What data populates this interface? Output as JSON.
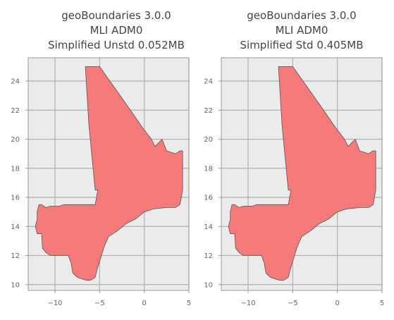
{
  "colors": {
    "background": "#ebebeb",
    "grid": "#b0b0b0",
    "frame": "#999999",
    "fill": "#f87474",
    "edge": "#555555"
  },
  "chart_data": [
    {
      "type": "map",
      "title_lines": [
        "geoBoundaries 3.0.0",
        "MLI ADM0",
        "Simplified Unstd 0.052MB"
      ],
      "xlabel": "",
      "ylabel": "",
      "xlim": [
        -13.0,
        5.0
      ],
      "ylim": [
        9.6,
        25.6
      ],
      "xticks": [
        -10,
        -5,
        0,
        5
      ],
      "yticks": [
        10,
        12,
        14,
        16,
        18,
        20,
        22,
        24
      ],
      "grid": true,
      "shape": [
        [
          -6.6,
          25.0
        ],
        [
          -5.0,
          25.0
        ],
        [
          -2.0,
          22.4
        ],
        [
          -0.2,
          20.8
        ],
        [
          0.8,
          20.0
        ],
        [
          1.2,
          19.5
        ],
        [
          2.0,
          20.0
        ],
        [
          2.5,
          19.2
        ],
        [
          3.5,
          19.0
        ],
        [
          4.0,
          19.2
        ],
        [
          4.3,
          19.2
        ],
        [
          4.3,
          16.5
        ],
        [
          4.0,
          15.5
        ],
        [
          3.5,
          15.3
        ],
        [
          2.5,
          15.3
        ],
        [
          1.0,
          15.2
        ],
        [
          0.0,
          15.0
        ],
        [
          -1.0,
          14.5
        ],
        [
          -2.0,
          14.2
        ],
        [
          -3.0,
          13.7
        ],
        [
          -4.0,
          13.3
        ],
        [
          -4.5,
          12.6
        ],
        [
          -5.0,
          11.6
        ],
        [
          -5.2,
          11.2
        ],
        [
          -5.5,
          10.5
        ],
        [
          -6.0,
          10.3
        ],
        [
          -6.5,
          10.3
        ],
        [
          -7.0,
          10.4
        ],
        [
          -7.5,
          10.5
        ],
        [
          -8.0,
          10.8
        ],
        [
          -8.2,
          11.5
        ],
        [
          -8.5,
          12.0
        ],
        [
          -9.0,
          12.0
        ],
        [
          -10.0,
          12.0
        ],
        [
          -10.5,
          12.0
        ],
        [
          -11.0,
          12.2
        ],
        [
          -11.4,
          12.5
        ],
        [
          -11.5,
          13.5
        ],
        [
          -12.0,
          13.5
        ],
        [
          -12.2,
          14.0
        ],
        [
          -12.0,
          14.5
        ],
        [
          -12.0,
          15.0
        ],
        [
          -11.8,
          15.5
        ],
        [
          -11.5,
          15.5
        ],
        [
          -11.0,
          15.3
        ],
        [
          -10.5,
          15.4
        ],
        [
          -9.5,
          15.4
        ],
        [
          -9.0,
          15.5
        ],
        [
          -7.5,
          15.5
        ],
        [
          -5.5,
          15.5
        ],
        [
          -5.2,
          16.5
        ],
        [
          -5.5,
          16.5
        ],
        [
          -6.2,
          21.0
        ],
        [
          -6.6,
          25.0
        ]
      ]
    },
    {
      "type": "map",
      "title_lines": [
        "geoBoundaries 3.0.0",
        "MLI ADM0",
        "Simplified Std 0.405MB"
      ],
      "xlabel": "",
      "ylabel": "",
      "xlim": [
        -13.0,
        5.0
      ],
      "ylim": [
        9.6,
        25.6
      ],
      "xticks": [
        -10,
        -5,
        0,
        5
      ],
      "yticks": [
        10,
        12,
        14,
        16,
        18,
        20,
        22,
        24
      ],
      "grid": true,
      "shape": [
        [
          -6.6,
          25.0
        ],
        [
          -5.0,
          25.0
        ],
        [
          -2.0,
          22.4
        ],
        [
          -0.2,
          20.8
        ],
        [
          0.8,
          20.0
        ],
        [
          1.2,
          19.5
        ],
        [
          2.0,
          20.0
        ],
        [
          2.5,
          19.2
        ],
        [
          3.5,
          19.0
        ],
        [
          4.0,
          19.2
        ],
        [
          4.3,
          19.2
        ],
        [
          4.3,
          16.5
        ],
        [
          4.0,
          15.5
        ],
        [
          3.5,
          15.3
        ],
        [
          2.5,
          15.3
        ],
        [
          1.0,
          15.2
        ],
        [
          0.0,
          15.0
        ],
        [
          -1.0,
          14.5
        ],
        [
          -2.0,
          14.2
        ],
        [
          -3.0,
          13.7
        ],
        [
          -4.0,
          13.3
        ],
        [
          -4.5,
          12.6
        ],
        [
          -5.0,
          11.6
        ],
        [
          -5.2,
          11.2
        ],
        [
          -5.5,
          10.5
        ],
        [
          -6.0,
          10.3
        ],
        [
          -6.5,
          10.3
        ],
        [
          -7.0,
          10.4
        ],
        [
          -7.5,
          10.5
        ],
        [
          -8.0,
          10.8
        ],
        [
          -8.2,
          11.5
        ],
        [
          -8.5,
          12.0
        ],
        [
          -9.0,
          12.0
        ],
        [
          -10.0,
          12.0
        ],
        [
          -10.5,
          12.0
        ],
        [
          -11.0,
          12.2
        ],
        [
          -11.4,
          12.5
        ],
        [
          -11.5,
          13.5
        ],
        [
          -12.0,
          13.5
        ],
        [
          -12.2,
          14.0
        ],
        [
          -12.0,
          14.5
        ],
        [
          -12.0,
          15.0
        ],
        [
          -11.8,
          15.5
        ],
        [
          -11.5,
          15.5
        ],
        [
          -11.0,
          15.3
        ],
        [
          -10.5,
          15.4
        ],
        [
          -9.5,
          15.4
        ],
        [
          -9.0,
          15.5
        ],
        [
          -7.5,
          15.5
        ],
        [
          -5.5,
          15.5
        ],
        [
          -5.2,
          16.5
        ],
        [
          -5.5,
          16.5
        ],
        [
          -6.2,
          21.0
        ],
        [
          -6.6,
          25.0
        ]
      ]
    }
  ]
}
